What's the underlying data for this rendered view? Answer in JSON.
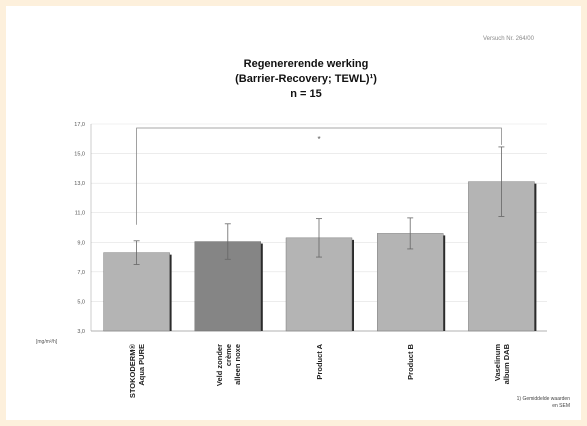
{
  "header": {
    "version_note": "Versuch Nr. 264/00"
  },
  "chart_data": {
    "type": "bar",
    "title": [
      "Regenererende werking",
      "(Barrier-Recovery; TEWL)¹)",
      "n = 15"
    ],
    "ylabel": "[mg/m²/h]",
    "ylim": [
      3.0,
      17.0
    ],
    "yticks": [
      "3,0",
      "5,0",
      "7,0",
      "9,0",
      "11,0",
      "13,0",
      "15,0",
      "17,0"
    ],
    "grid": true,
    "categories": [
      [
        "STOKODERM®",
        "Aqua PURE"
      ],
      [
        "Veld zonder",
        "crème",
        "alleen noxe"
      ],
      [
        "Product A"
      ],
      [
        "Product B"
      ],
      [
        "Vaselinum",
        "album DAB"
      ]
    ],
    "values": [
      8.3,
      9.05,
      9.3,
      9.6,
      13.1
    ],
    "errors": [
      0.8,
      1.2,
      1.3,
      1.05,
      2.35
    ],
    "colors": [
      "#b4b4b4",
      "#858585",
      "#b4b4b4",
      "#b4b4b4",
      "#b4b4b4"
    ],
    "significance": {
      "from": 0,
      "to": 4,
      "label": "*"
    },
    "footnote": [
      "1) Gemiddelde waarden",
      "en SEM"
    ]
  }
}
